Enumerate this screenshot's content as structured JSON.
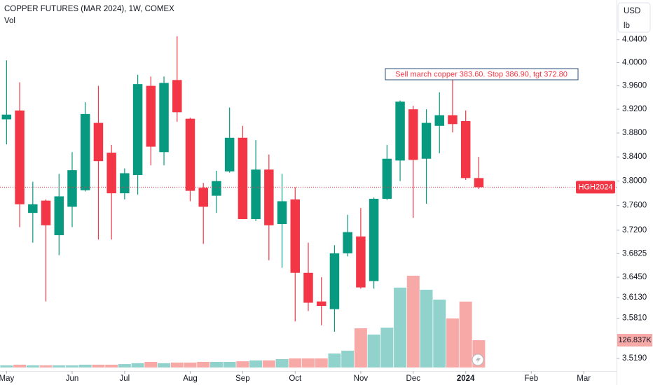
{
  "chart_data": {
    "type": "candlestick",
    "title": "COPPER FUTURES (MAR 2024), 1W, COMEX",
    "volume_title": "Vol",
    "currency": "USD",
    "unit": "lb",
    "symbol_label": "HGH2024",
    "annotation": "Sell march copper 383.60. Stop 386.90, tgt 372.80",
    "log_scale": true,
    "up_color": "#089981",
    "down_color": "#f23645",
    "open": [
      3.903,
      3.918,
      3.748,
      3.768,
      3.712,
      3.758,
      3.785,
      3.897,
      3.847,
      3.78,
      3.81,
      3.96,
      3.848,
      3.97,
      3.904,
      3.789,
      3.776,
      3.816,
      3.872,
      3.738,
      3.819,
      3.73,
      3.77,
      3.652,
      3.607,
      3.595,
      3.683,
      3.71,
      3.639,
      3.771,
      3.834,
      3.92,
      3.837,
      3.892,
      3.91,
      3.9,
      3.805
    ],
    "high": [
      4.004,
      3.966,
      3.799,
      3.77,
      3.812,
      3.848,
      3.932,
      3.96,
      3.86,
      3.821,
      3.979,
      3.976,
      3.976,
      4.046,
      3.906,
      3.797,
      3.817,
      3.923,
      3.892,
      3.868,
      3.844,
      3.812,
      3.79,
      3.7,
      3.645,
      3.696,
      3.745,
      3.756,
      3.773,
      3.86,
      3.935,
      3.926,
      3.92,
      3.949,
      3.976,
      3.918,
      3.84
    ],
    "low": [
      3.861,
      3.725,
      3.7,
      3.607,
      3.68,
      3.725,
      3.783,
      3.705,
      3.705,
      3.77,
      3.778,
      3.826,
      3.826,
      3.899,
      3.767,
      3.698,
      3.748,
      3.814,
      3.738,
      3.735,
      3.672,
      3.66,
      3.576,
      3.592,
      3.57,
      3.56,
      3.678,
      3.627,
      3.627,
      3.769,
      3.8,
      3.74,
      3.763,
      3.846,
      3.881,
      3.802,
      3.787
    ],
    "close": [
      3.911,
      3.762,
      3.762,
      3.728,
      3.775,
      3.818,
      3.912,
      3.833,
      3.78,
      3.813,
      3.963,
      3.857,
      3.965,
      3.915,
      3.784,
      3.758,
      3.8,
      3.872,
      3.738,
      3.819,
      3.728,
      3.767,
      3.652,
      3.605,
      3.6,
      3.683,
      3.717,
      3.629,
      3.771,
      3.837,
      3.933,
      3.835,
      3.897,
      3.91,
      3.895,
      3.805,
      3.79
    ],
    "volume": {
      "values": [
        9800,
        13000,
        9800,
        9800,
        9800,
        9800,
        13000,
        13000,
        13000,
        16000,
        20000,
        26000,
        20000,
        23000,
        23000,
        26000,
        26000,
        26000,
        29000,
        33000,
        33000,
        39000,
        42000,
        42000,
        42000,
        65000,
        78000,
        182000,
        153000,
        185000,
        371000,
        426000,
        361000,
        315000,
        228000,
        306000,
        126837
      ],
      "last_label": "126.837K",
      "ylim": [
        0,
        520000
      ],
      "up_color": "#92d2cc",
      "down_color": "#f7a9a7"
    },
    "ylim": [
      3.5,
      4.11
    ],
    "yticks": [
      {
        "value": 4.04,
        "label": "4.0400"
      },
      {
        "value": 4.0,
        "label": "4.0000"
      },
      {
        "value": 3.96,
        "label": "3.9600"
      },
      {
        "value": 3.92,
        "label": "3.9200"
      },
      {
        "value": 3.88,
        "label": "3.8800"
      },
      {
        "value": 3.84,
        "label": "3.8400"
      },
      {
        "value": 3.8,
        "label": "3.8000"
      },
      {
        "value": 3.76,
        "label": "3.7600"
      },
      {
        "value": 3.72,
        "label": "3.7200"
      },
      {
        "value": 3.6825,
        "label": "3.6825"
      },
      {
        "value": 3.645,
        "label": "3.6450"
      },
      {
        "value": 3.613,
        "label": "3.6130"
      },
      {
        "value": 3.581,
        "label": "3.5810"
      },
      {
        "value": 3.519,
        "label": "3.5190"
      }
    ],
    "xlim": [
      -0.5,
      46.5
    ],
    "xticks": [
      {
        "value": 0,
        "label": "May"
      },
      {
        "value": 5,
        "label": "Jun"
      },
      {
        "value": 9,
        "label": "Jul"
      },
      {
        "value": 14,
        "label": "Aug"
      },
      {
        "value": 18,
        "label": "Sep"
      },
      {
        "value": 22,
        "label": "Oct"
      },
      {
        "value": 27,
        "label": "Nov"
      },
      {
        "value": 31,
        "label": "Dec"
      },
      {
        "value": 35,
        "label": "2024"
      },
      {
        "value": 40,
        "label": "Feb"
      },
      {
        "value": 44,
        "label": "Mar"
      }
    ]
  }
}
